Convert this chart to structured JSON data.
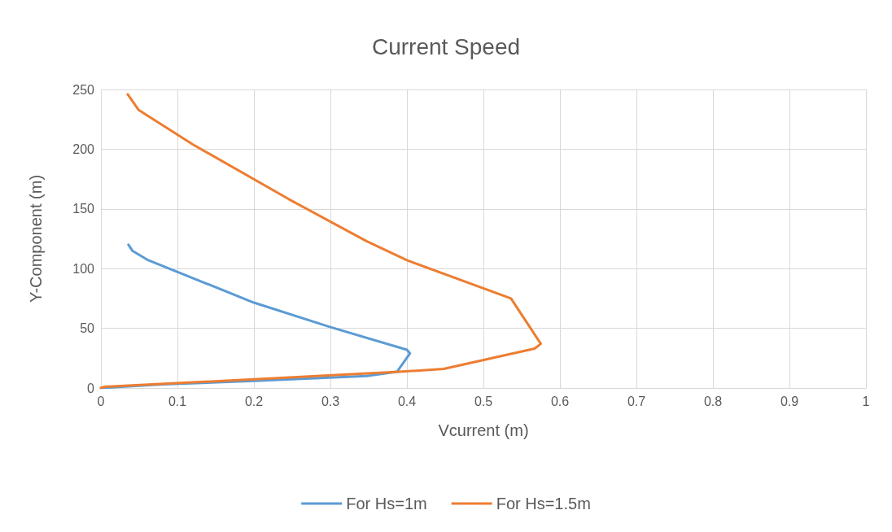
{
  "chart_data": {
    "type": "line",
    "title": "Current Speed",
    "xlabel": "Vcurrent (m)",
    "ylabel": "Y-Component (m)",
    "xlim": [
      0,
      1
    ],
    "xticks": [
      0,
      0.1,
      0.2,
      0.3,
      0.4,
      0.5,
      0.6,
      0.7,
      0.8,
      0.9,
      1
    ],
    "ylim": [
      0,
      250
    ],
    "yticks": [
      0,
      50,
      100,
      150,
      200,
      250
    ],
    "grid": true,
    "legend": "bottom",
    "marker": "none",
    "line_style": "solid",
    "series": [
      {
        "name": "For Hs=1m",
        "color": "#5b9bd5",
        "x": [
          0,
          0.08,
          0.2,
          0.347,
          0.387,
          0.404,
          0.4,
          0.3,
          0.2,
          0.062,
          0.041,
          0.036
        ],
        "values": [
          0,
          3,
          6,
          10,
          13.6,
          29,
          32,
          51,
          71.5,
          107,
          115,
          120
        ]
      },
      {
        "name": "For Hs=1.5m",
        "color": "#ed7d31",
        "x": [
          0,
          0.004,
          0.19,
          0.39,
          0.448,
          0.567,
          0.575,
          0.536,
          0.4,
          0.347,
          0.246,
          0.12,
          0.049,
          0.035
        ],
        "values": [
          0,
          1,
          7,
          13.6,
          16,
          33,
          37,
          75,
          107,
          123,
          158,
          204,
          233,
          246
        ]
      }
    ]
  }
}
